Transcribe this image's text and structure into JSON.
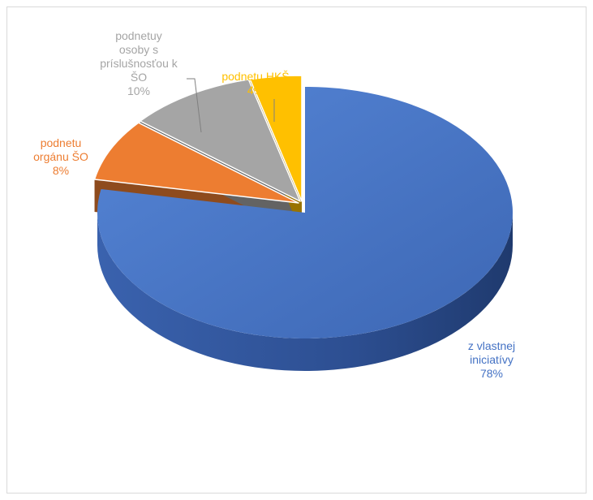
{
  "chart_data": {
    "type": "pie",
    "title": "",
    "slices": [
      {
        "name": "z vlastnej iniciatívy",
        "label_lines": [
          "z vlastnej",
          "iniciatívy"
        ],
        "value": 78,
        "pct_label": "78%",
        "color": "#4472C4"
      },
      {
        "name": "podnetu orgánu ŠO",
        "label_lines": [
          "podnetu",
          "orgánu ŠO"
        ],
        "value": 8,
        "pct_label": "8%",
        "color": "#ED7D31"
      },
      {
        "name": "podnetuy osoby s príslušnosťou k ŠO",
        "label_lines": [
          "podnetuy",
          "osoby s",
          "príslušnosťou k",
          "ŠO"
        ],
        "value": 10,
        "pct_label": "10%",
        "color": "#A5A5A5"
      },
      {
        "name": "podnetu HKŠ",
        "label_lines": [
          "podnetu HKŠ"
        ],
        "value": 4,
        "pct_label": "4%",
        "color": "#FFC000"
      }
    ],
    "style": "3d-exploded-pie",
    "label_colors": {
      "own": "#4472C4",
      "org": "#ED7D31",
      "persons": "#A5A5A5",
      "hks": "#FFC000"
    }
  }
}
